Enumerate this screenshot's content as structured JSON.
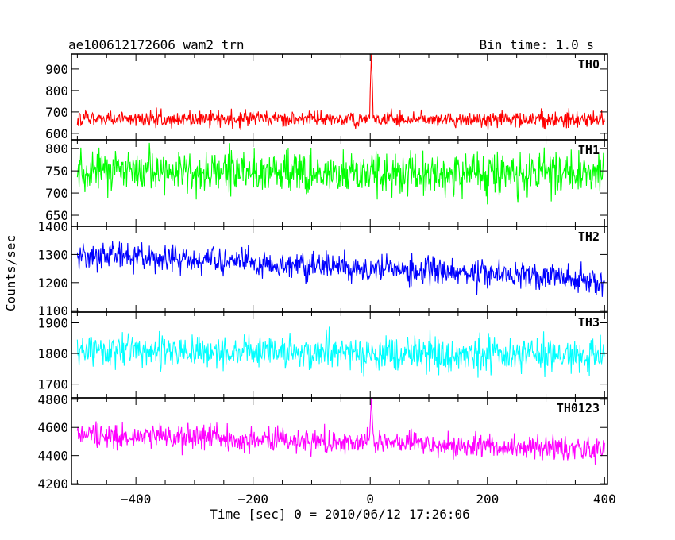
{
  "header": {
    "title": "ae100612172606_wam2_trn",
    "bin_time": "Bin time: 1.0 s"
  },
  "chart_data": {
    "type": "line",
    "xlabel": "Time [sec] 0 = 2010/06/12 17:26:06",
    "ylabel": "Counts/sec",
    "xlim": [
      -510,
      405
    ],
    "x_ticks": [
      -400,
      -200,
      0,
      200,
      400
    ],
    "x_range": [
      -500,
      400
    ],
    "bin_time_s": 1.0,
    "panels": [
      {
        "name": "TH0",
        "color": "#ff0000",
        "ylim": [
          570,
          970
        ],
        "y_ticks": [
          600,
          700,
          800,
          900
        ],
        "baseline_start": 668,
        "baseline_end": 665,
        "noise_amplitude": 35,
        "max_observed": 970,
        "min_observed": 600,
        "spike": {
          "x": 2,
          "peak": 970
        }
      },
      {
        "name": "TH1",
        "color": "#00ff00",
        "ylim": [
          625,
          820
        ],
        "y_ticks": [
          650,
          700,
          750,
          800
        ],
        "baseline_start": 748,
        "baseline_end": 742,
        "noise_amplitude": 45,
        "max_observed": 815,
        "min_observed": 640
      },
      {
        "name": "TH2",
        "color": "#0000ff",
        "ylim": [
          1095,
          1400
        ],
        "y_ticks": [
          1100,
          1200,
          1300,
          1400
        ],
        "baseline_start": 1300,
        "baseline_end": 1210,
        "noise_amplitude": 45,
        "max_observed": 1400,
        "min_observed": 1110
      },
      {
        "name": "TH3",
        "color": "#00ffff",
        "ylim": [
          1655,
          1935
        ],
        "y_ticks": [
          1700,
          1800,
          1900
        ],
        "baseline_start": 1810,
        "baseline_end": 1795,
        "noise_amplitude": 50,
        "max_observed": 1930,
        "min_observed": 1670
      },
      {
        "name": "TH0123",
        "color": "#ff00ff",
        "ylim": [
          4195,
          4810
        ],
        "y_ticks": [
          4200,
          4400,
          4600,
          4800
        ],
        "baseline_start": 4550,
        "baseline_end": 4440,
        "noise_amplitude": 80,
        "max_observed": 4810,
        "min_observed": 4210,
        "spike": {
          "x": 2,
          "peak": 4810
        }
      }
    ]
  }
}
